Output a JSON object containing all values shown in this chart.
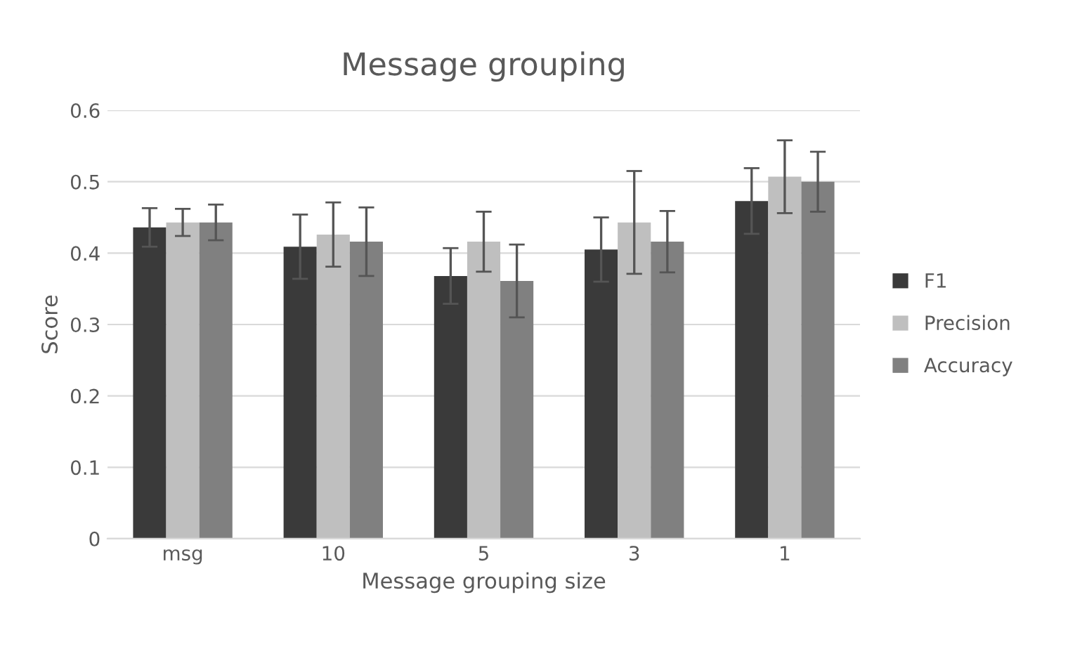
{
  "chart_data": {
    "type": "bar",
    "title": "Message grouping",
    "xlabel": "Message grouping size",
    "ylabel": "Score",
    "categories": [
      "msg",
      "10",
      "5",
      "3",
      "1"
    ],
    "series": [
      {
        "name": "F1",
        "color": "#3a3a3a",
        "values": [
          0.436,
          0.409,
          0.368,
          0.405,
          0.473
        ],
        "errors": [
          0.027,
          0.045,
          0.039,
          0.045,
          0.046
        ]
      },
      {
        "name": "Precision",
        "color": "#bfbfbf",
        "values": [
          0.443,
          0.426,
          0.416,
          0.443,
          0.507
        ],
        "errors": [
          0.019,
          0.045,
          0.042,
          0.072,
          0.051
        ]
      },
      {
        "name": "Accuracy",
        "color": "#808080",
        "values": [
          0.443,
          0.416,
          0.361,
          0.416,
          0.5
        ],
        "errors": [
          0.025,
          0.048,
          0.051,
          0.043,
          0.042
        ]
      }
    ],
    "ylim": [
      0,
      0.6
    ],
    "yticks": [
      {
        "value": 0,
        "label": "0"
      },
      0.1,
      0.2,
      0.3,
      0.4,
      0.5,
      0.6
    ],
    "grid": "y",
    "legend": "right"
  }
}
